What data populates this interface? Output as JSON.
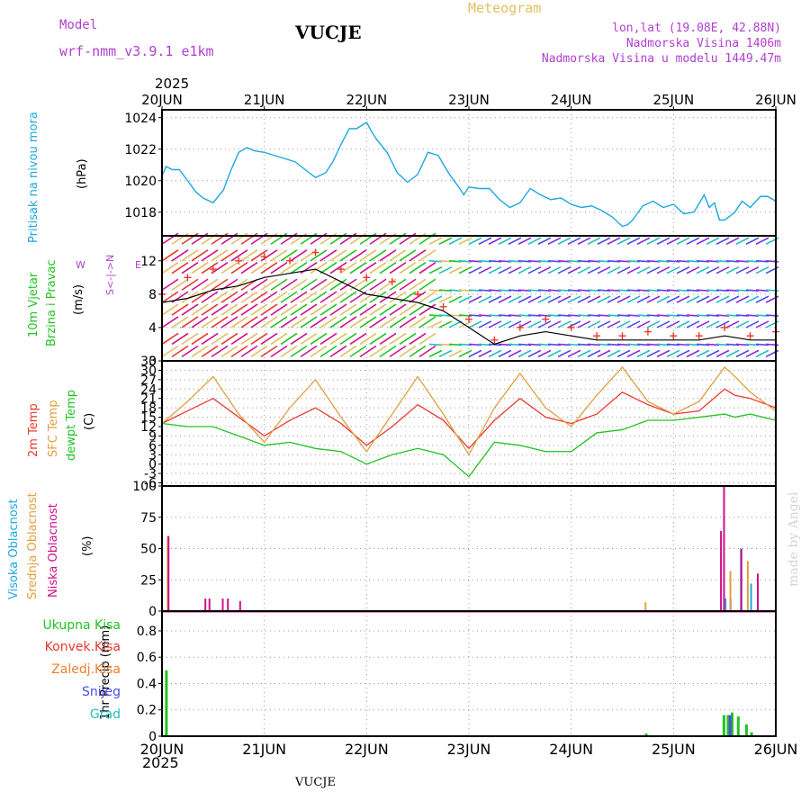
{
  "header": {
    "model_label": "Model",
    "model_value": "wrf-nmm_v3.9.1  e1km",
    "station": "VUCJE",
    "title": "Meteogram",
    "coords": "lon,lat (19.08E, 42.88N)",
    "elevation": "Nadmorska Visina 1406m",
    "model_elevation": "Nadmorska Visina u modelu 1449.47m",
    "footer_station": "VUCJE",
    "credit": "made by Angel"
  },
  "colors": {
    "pressure": "#1ea7e0",
    "wind_speed": "#000000",
    "gust": "#e8392e",
    "t2m": "#e8392e",
    "sfc": "#e0a040",
    "dewpt": "#22c322",
    "high_cloud": "#1ea7e0",
    "mid_cloud": "#e0a040",
    "low_cloud": "#d0108a",
    "total_precip": "#22c322",
    "conv_precip": "#e8392e",
    "grid_scale_precip": "#f07f2a",
    "snow": "#4c4cf0",
    "graupel": "#22c0c0",
    "purple": "#b040d0"
  },
  "time_axis": {
    "year": "2025",
    "ticks": [
      "20JUN",
      "21JUN",
      "22JUN",
      "23JUN",
      "24JUN",
      "25JUN",
      "26JUN"
    ]
  },
  "panels": {
    "pressure": {
      "label": "Pritisak na nivou mora",
      "unit": "(hPa)",
      "ticks": [
        "1018",
        "1020",
        "1022",
        "1024"
      ]
    },
    "wind": {
      "label1": "10m Vjetar",
      "label2": "Brzina i Pravac",
      "unit": "(m/s)",
      "ticks": [
        "0",
        "4",
        "8",
        "12"
      ],
      "compass_n": "N",
      "compass_w": "W",
      "compass_e": "E",
      "compass_s": "S"
    },
    "temp": {
      "label1": "2m Temp",
      "label2": "SFC Temp",
      "label3": "dewpt Temp",
      "unit": "(C)",
      "ticks": [
        "-6",
        "-3",
        "0",
        "3",
        "6",
        "9",
        "12",
        "15",
        "18",
        "21",
        "24",
        "27",
        "30",
        "33"
      ]
    },
    "cloud": {
      "label1": "Visoka Oblacnost",
      "label2": "Srednja Oblacnost",
      "label3": "Niska Oblacnost",
      "unit": "(%)",
      "ticks": [
        "0",
        "25",
        "50",
        "75",
        "100"
      ]
    },
    "precip": {
      "legend": [
        "Ukupna Kisa",
        "Konvek.Kisa",
        "Zaledj.Kisa",
        "Snijeg",
        "Grad"
      ],
      "unit": "1hr Precip (mm)",
      "ticks": [
        "0",
        "0.2",
        "0.4",
        "0.6",
        "0.8"
      ]
    }
  },
  "chart_data": [
    {
      "type": "line",
      "title": "Pritisak na nivou mora",
      "ylabel": "(hPa)",
      "ylim": [
        1016.5,
        1024.5
      ],
      "x_days": [
        0,
        0.04,
        0.1,
        0.17,
        0.25,
        0.33,
        0.4,
        0.5,
        0.6,
        0.67,
        0.75,
        0.83,
        0.9,
        1.0,
        1.1,
        1.2,
        1.3,
        1.4,
        1.5,
        1.6,
        1.67,
        1.75,
        1.83,
        1.9,
        2.0,
        2.05,
        2.1,
        2.2,
        2.3,
        2.4,
        2.5,
        2.6,
        2.7,
        2.8,
        2.9,
        2.95,
        3.0,
        3.1,
        3.2,
        3.3,
        3.4,
        3.5,
        3.6,
        3.7,
        3.8,
        3.9,
        4.0,
        4.1,
        4.2,
        4.3,
        4.4,
        4.5,
        4.55,
        4.6,
        4.7,
        4.8,
        4.9,
        5.0,
        5.1,
        5.2,
        5.3,
        5.35,
        5.4,
        5.45,
        5.5,
        5.6,
        5.67,
        5.75,
        5.85,
        5.92,
        6.0
      ],
      "series": [
        {
          "name": "Pritisak na nivou mora",
          "values": [
            1020.3,
            1020.9,
            1020.7,
            1020.7,
            1020.0,
            1019.3,
            1018.9,
            1018.6,
            1019.4,
            1020.6,
            1021.8,
            1022.1,
            1021.9,
            1021.8,
            1021.6,
            1021.4,
            1021.2,
            1020.7,
            1020.2,
            1020.5,
            1021.2,
            1022.3,
            1023.3,
            1023.3,
            1023.7,
            1023.1,
            1022.6,
            1021.8,
            1020.5,
            1019.9,
            1020.4,
            1021.8,
            1021.6,
            1020.5,
            1019.6,
            1019.1,
            1019.6,
            1019.5,
            1019.5,
            1018.8,
            1018.3,
            1018.6,
            1019.5,
            1019.1,
            1018.8,
            1018.9,
            1018.5,
            1018.3,
            1018.4,
            1018.1,
            1017.7,
            1017.1,
            1017.2,
            1017.5,
            1018.4,
            1018.7,
            1018.3,
            1018.5,
            1017.9,
            1018.0,
            1019.1,
            1018.3,
            1018.6,
            1017.5,
            1017.5,
            1018.0,
            1018.7,
            1018.3,
            1019.0,
            1019.0,
            1018.7
          ]
        }
      ]
    },
    {
      "type": "scatter",
      "title": "10m Vjetar Brzina i Pravac",
      "ylabel": "(m/s)",
      "ylim": [
        0,
        15
      ],
      "x_days": [
        0,
        0.25,
        0.5,
        0.75,
        1.0,
        1.25,
        1.5,
        1.75,
        2.0,
        2.25,
        2.5,
        2.75,
        3.0,
        3.25,
        3.5,
        3.75,
        4.0,
        4.25,
        4.5,
        4.75,
        5.0,
        5.25,
        5.5,
        5.75,
        6.0
      ],
      "series": [
        {
          "name": "speed",
          "values": [
            7,
            7.5,
            8.5,
            9,
            10,
            10.5,
            11,
            9.5,
            8,
            7.5,
            7,
            6,
            4,
            2,
            3,
            3.5,
            3,
            2.5,
            2.5,
            2.5,
            2.5,
            2.5,
            3,
            2.5,
            2.5
          ]
        },
        {
          "name": "gust",
          "values": [
            8,
            10,
            11,
            12,
            12.5,
            12,
            13,
            11,
            10,
            9.5,
            8,
            6.5,
            5,
            2.5,
            4,
            5,
            4,
            3,
            3,
            3.5,
            3,
            3,
            4,
            3,
            3.5
          ]
        }
      ]
    },
    {
      "type": "line",
      "title": "Temp",
      "ylabel": "(C)",
      "ylim": [
        -7,
        33
      ],
      "x_days": [
        0,
        0.25,
        0.5,
        0.75,
        1.0,
        1.25,
        1.5,
        1.75,
        2.0,
        2.25,
        2.5,
        2.75,
        3.0,
        3.25,
        3.5,
        3.75,
        4.0,
        4.25,
        4.5,
        4.75,
        5.0,
        5.25,
        5.5,
        5.6,
        5.75,
        6.0
      ],
      "series": [
        {
          "name": "2m Temp",
          "values": [
            13,
            17,
            21,
            15,
            9,
            14,
            18,
            13,
            6,
            12,
            19,
            14,
            5,
            14,
            21,
            15,
            13,
            16,
            23,
            19,
            16,
            17,
            24,
            22,
            21,
            18
          ]
        },
        {
          "name": "SFC Temp",
          "values": [
            13,
            20,
            28,
            16,
            7,
            18,
            27,
            15,
            4,
            16,
            28,
            16,
            3,
            18,
            29,
            18,
            12,
            22,
            31,
            20,
            16,
            20,
            31,
            28,
            23,
            17
          ]
        },
        {
          "name": "dewpt Temp",
          "values": [
            13,
            12,
            12,
            9,
            6,
            7,
            5,
            4,
            0,
            3,
            5,
            3,
            -4,
            7,
            6,
            4,
            4,
            10,
            11,
            14,
            14,
            15,
            16,
            15,
            16,
            14
          ]
        }
      ]
    },
    {
      "type": "bar",
      "title": "Oblacnost",
      "ylabel": "(%)",
      "ylim": [
        0,
        100
      ],
      "series": [
        {
          "name": "Visoka Oblacnost",
          "x_days": [
            5.5,
            5.55,
            5.65,
            5.75
          ],
          "values": [
            10,
            10,
            50,
            22
          ]
        },
        {
          "name": "Srednja Oblacnost",
          "x_days": [
            0.03,
            4.7,
            5.53,
            5.7
          ],
          "values": [
            60,
            7,
            32,
            40
          ]
        },
        {
          "name": "Niska Oblacnost",
          "x_days": [
            0.02,
            0.38,
            0.42,
            0.55,
            0.6,
            0.72,
            5.42,
            5.45,
            5.62,
            5.78
          ],
          "values": [
            60,
            10,
            10,
            10,
            10,
            8,
            64,
            100,
            50,
            30
          ]
        }
      ]
    },
    {
      "type": "bar",
      "title": "1hr Precip",
      "ylabel": "1hr Precip (mm)",
      "ylim": [
        0,
        0.95
      ],
      "series": [
        {
          "name": "Ukupna Kisa",
          "x_days": [
            0.03,
            4.72,
            5.48,
            5.52,
            5.56,
            5.62,
            5.7,
            5.75
          ],
          "values": [
            0.5,
            0.02,
            0.16,
            0.16,
            0.18,
            0.15,
            0.09,
            0.03
          ]
        },
        {
          "name": "Snijeg",
          "x_days": [
            5.54
          ],
          "values": [
            0.16
          ]
        }
      ]
    }
  ]
}
